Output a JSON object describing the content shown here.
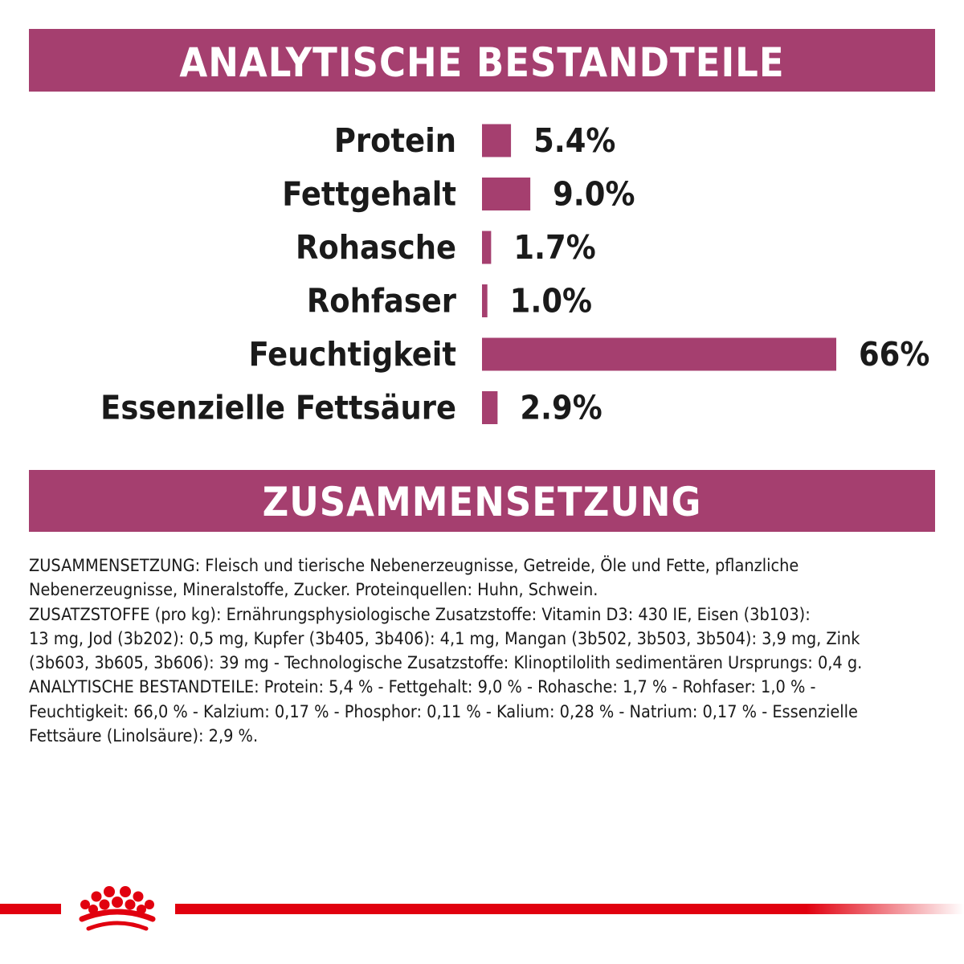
{
  "colors": {
    "banner": "#a53f6f",
    "bar": "#a53f6f",
    "brand_red": "#e1000f"
  },
  "header_analytic": "ANALYTISCHE BESTANDTEILE",
  "chart_data": {
    "type": "bar",
    "orientation": "horizontal",
    "categories": [
      "Protein",
      "Fettgehalt",
      "Rohasche",
      "Rohfaser",
      "Feuchtigkeit",
      "Essenzielle Fettsäure"
    ],
    "values": [
      5.4,
      9.0,
      1.7,
      1.0,
      66,
      2.9
    ],
    "value_labels": [
      "5.4%",
      "9.0%",
      "1.7%",
      "1.0%",
      "66%",
      "2.9%"
    ],
    "unit": "%",
    "grid": false,
    "title": "",
    "xlabel": "",
    "ylabel": ""
  },
  "header_composition": "ZUSAMMENSETZUNG",
  "composition_text": "ZUSAMMENSETZUNG: Fleisch und tierische Nebenerzeugnisse, Getreide, Öle und Fette, pflanzliche\nNebenerzeugnisse, Mineralstoffe, Zucker. Proteinquellen: Huhn, Schwein.\nZUSATZSTOFFE (pro kg): Ernährungsphysiologische Zusatzstoffe: Vitamin D3: 430 IE, Eisen (3b103):\n13 mg, Jod (3b202): 0,5 mg, Kupfer (3b405, 3b406): 4,1 mg, Mangan (3b502, 3b503, 3b504): 3,9 mg, Zink\n(3b603, 3b605, 3b606): 39 mg - Technologische Zusatzstoffe: Klinoptilolith sedimentären Ursprungs: 0,4 g.\nANALYTISCHE BESTANDTEILE: Protein: 5,4 % - Fettgehalt: 9,0 % - Rohasche: 1,7 % - Rohfaser: 1,0 % -\nFeuchtigkeit: 66,0 % - Kalzium: 0,17 % - Phosphor: 0,11 % - Kalium: 0,28 % - Natrium: 0,17 % - Essenzielle\nFettsäure (Linolsäure): 2,9 %.",
  "logo_icon": "royal-canin-crown-icon"
}
